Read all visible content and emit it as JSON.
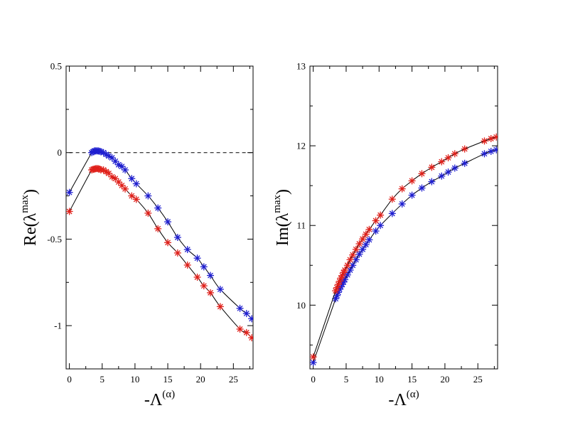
{
  "chart_data": [
    {
      "type": "scatter",
      "panel": "left",
      "ylabel": {
        "text": "Re(λ",
        "sup": "max",
        "close": ")"
      },
      "xlabel": {
        "text": "-Λ",
        "sup": "(α)"
      },
      "xlim": [
        -0.5,
        28
      ],
      "ylim": [
        -1.25,
        0.5
      ],
      "xticks": [
        0,
        5,
        10,
        15,
        20,
        25
      ],
      "xtick_labels": [
        "0",
        "5",
        "10",
        "15",
        "20",
        "25"
      ],
      "yticks": [
        -1,
        -0.5,
        0,
        0.5
      ],
      "ytick_labels": [
        "-1",
        "-0.5",
        "0",
        "0.5"
      ],
      "reference_line": {
        "y": 0,
        "style": "dashed"
      },
      "series": [
        {
          "name": "blue",
          "color": "#1f1fd0",
          "x": [
            0,
            3.4,
            3.6,
            3.8,
            4.0,
            4.2,
            4.4,
            4.6,
            4.8,
            5.2,
            5.6,
            6.0,
            6.5,
            7.0,
            7.5,
            8.0,
            8.5,
            9.5,
            10.2,
            12.0,
            13.5,
            15.0,
            16.5,
            18.0,
            19.5,
            20.5,
            21.5,
            23.0,
            26.0,
            27.0,
            27.8
          ],
          "y": [
            -0.23,
            0.0,
            0.005,
            0.01,
            0.01,
            0.01,
            0.01,
            0.008,
            0.005,
            -0.0,
            -0.01,
            -0.02,
            -0.03,
            -0.05,
            -0.07,
            -0.08,
            -0.1,
            -0.15,
            -0.18,
            -0.25,
            -0.32,
            -0.4,
            -0.49,
            -0.56,
            -0.61,
            -0.66,
            -0.71,
            -0.79,
            -0.9,
            -0.93,
            -0.96
          ]
        },
        {
          "name": "red",
          "color": "#e0201a",
          "x": [
            0,
            3.4,
            3.6,
            3.8,
            4.0,
            4.2,
            4.4,
            4.6,
            4.8,
            5.2,
            5.6,
            6.0,
            6.5,
            7.0,
            7.5,
            8.0,
            8.5,
            9.5,
            10.2,
            12.0,
            13.5,
            15.0,
            16.5,
            18.0,
            19.5,
            20.5,
            21.5,
            23.0,
            26.0,
            27.0,
            27.8
          ],
          "y": [
            -0.34,
            -0.1,
            -0.097,
            -0.095,
            -0.093,
            -0.092,
            -0.093,
            -0.095,
            -0.1,
            -0.1,
            -0.11,
            -0.12,
            -0.14,
            -0.15,
            -0.17,
            -0.19,
            -0.21,
            -0.25,
            -0.27,
            -0.35,
            -0.44,
            -0.52,
            -0.58,
            -0.65,
            -0.72,
            -0.77,
            -0.81,
            -0.89,
            -1.02,
            -1.04,
            -1.07
          ]
        }
      ]
    },
    {
      "type": "scatter",
      "panel": "right",
      "ylabel": {
        "text": "Im(λ",
        "sup": "max",
        "close": ")"
      },
      "xlabel": {
        "text": "-Λ",
        "sup": "(α)"
      },
      "xlim": [
        -0.5,
        28
      ],
      "ylim": [
        9.2,
        13
      ],
      "xticks": [
        0,
        5,
        10,
        15,
        20,
        25
      ],
      "xtick_labels": [
        "0",
        "5",
        "10",
        "15",
        "20",
        "25"
      ],
      "yticks": [
        10,
        11,
        12,
        13
      ],
      "ytick_labels": [
        "10",
        "11",
        "12",
        "13"
      ],
      "series": [
        {
          "name": "blue",
          "color": "#1f1fd0",
          "x": [
            0,
            3.4,
            3.6,
            3.8,
            4.0,
            4.2,
            4.4,
            4.6,
            4.8,
            5.2,
            5.6,
            6.0,
            6.5,
            7.0,
            7.5,
            8.0,
            8.5,
            9.5,
            10.2,
            12.0,
            13.5,
            15.0,
            16.5,
            18.0,
            19.5,
            20.5,
            21.5,
            23.0,
            26.0,
            27.0,
            27.8
          ],
          "y": [
            9.28,
            10.08,
            10.12,
            10.16,
            10.2,
            10.23,
            10.26,
            10.29,
            10.32,
            10.38,
            10.44,
            10.5,
            10.57,
            10.64,
            10.7,
            10.76,
            10.82,
            10.93,
            11.0,
            11.15,
            11.27,
            11.38,
            11.47,
            11.55,
            11.62,
            11.67,
            11.72,
            11.78,
            11.9,
            11.93,
            11.95
          ]
        },
        {
          "name": "red",
          "color": "#e0201a",
          "x": [
            0,
            3.4,
            3.6,
            3.8,
            4.0,
            4.2,
            4.4,
            4.6,
            4.8,
            5.2,
            5.6,
            6.0,
            6.5,
            7.0,
            7.5,
            8.0,
            8.5,
            9.5,
            10.2,
            12.0,
            13.5,
            15.0,
            16.5,
            18.0,
            19.5,
            20.5,
            21.5,
            23.0,
            26.0,
            27.0,
            27.8
          ],
          "y": [
            9.35,
            10.18,
            10.22,
            10.26,
            10.3,
            10.34,
            10.37,
            10.41,
            10.44,
            10.5,
            10.57,
            10.63,
            10.7,
            10.77,
            10.83,
            10.89,
            10.95,
            11.06,
            11.13,
            11.33,
            11.46,
            11.56,
            11.65,
            11.73,
            11.8,
            11.85,
            11.9,
            11.96,
            12.06,
            12.09,
            12.11
          ]
        }
      ]
    }
  ]
}
